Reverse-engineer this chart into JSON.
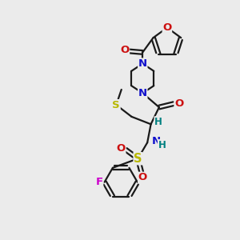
{
  "bg_color": "#ebebeb",
  "bond_color": "#1a1a1a",
  "atom_colors": {
    "N": "#1010cc",
    "O": "#cc1010",
    "S": "#b8b800",
    "F": "#cc00cc",
    "H": "#008080",
    "C": "#1a1a1a"
  },
  "lw": 1.6,
  "fontsize": 9.5
}
